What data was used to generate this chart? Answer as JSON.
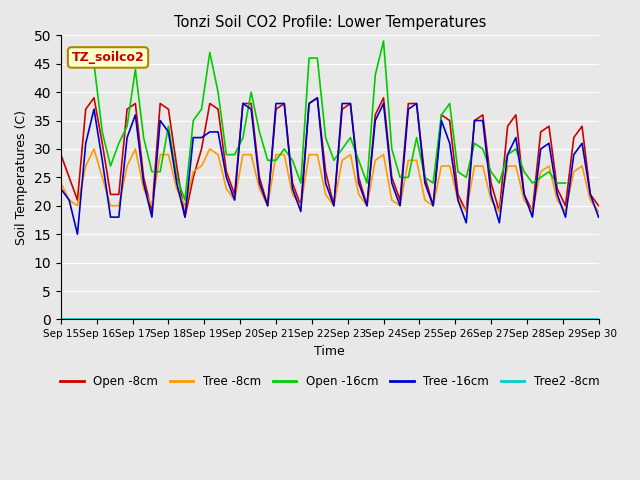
{
  "title": "Tonzi Soil CO2 Profile: Lower Temperatures",
  "xlabel": "Time",
  "ylabel": "Soil Temperatures (C)",
  "ylim": [
    0,
    50
  ],
  "yticks": [
    0,
    5,
    10,
    15,
    20,
    25,
    30,
    35,
    40,
    45,
    50
  ],
  "x_labels": [
    "Sep 15",
    "Sep 16",
    "Sep 17",
    "Sep 18",
    "Sep 19",
    "Sep 20",
    "Sep 21",
    "Sep 22",
    "Sep 23",
    "Sep 24",
    "Sep 25",
    "Sep 26",
    "Sep 27",
    "Sep 28",
    "Sep 29",
    "Sep 30"
  ],
  "bg_color": "#e8e8e8",
  "watermark": "TZ_soilco2",
  "open8_color": "#cc0000",
  "tree8_color": "#ff9900",
  "open16_color": "#00cc00",
  "tree16_color": "#0000cc",
  "tree2_8_color": "#00cccc",
  "open8_label": "Open -8cm",
  "tree8_label": "Tree -8cm",
  "open16_label": "Open -16cm",
  "tree16_label": "Tree -16cm",
  "tree2_8_label": "Tree2 -8cm",
  "open8": [
    29,
    25,
    21,
    37,
    39,
    31,
    22,
    22,
    37,
    38,
    25,
    19,
    38,
    37,
    27,
    18,
    25,
    30,
    38,
    37,
    26,
    22,
    38,
    38,
    25,
    20,
    37,
    38,
    24,
    20,
    38,
    39,
    26,
    20,
    37,
    38,
    25,
    20,
    36,
    39,
    25,
    21,
    38,
    38,
    25,
    20,
    36,
    35,
    22,
    19,
    35,
    36,
    24,
    19,
    34,
    36,
    22,
    19,
    33,
    34,
    23,
    20,
    32,
    34,
    22,
    20
  ],
  "tree8": [
    24,
    21,
    20,
    27,
    30,
    25,
    20,
    20,
    27,
    30,
    23,
    20,
    29,
    29,
    23,
    20,
    26,
    27,
    30,
    29,
    23,
    21,
    29,
    29,
    23,
    20,
    29,
    29,
    22,
    20,
    29,
    29,
    22,
    20,
    28,
    29,
    22,
    20,
    28,
    29,
    21,
    20,
    28,
    28,
    21,
    20,
    27,
    27,
    21,
    19,
    27,
    27,
    21,
    19,
    27,
    27,
    21,
    19,
    26,
    27,
    21,
    19,
    26,
    27,
    21,
    19
  ],
  "open16": [
    null,
    null,
    null,
    46,
    45,
    33,
    27,
    31,
    34,
    44,
    32,
    26,
    26,
    34,
    25,
    21,
    35,
    37,
    47,
    40,
    29,
    29,
    32,
    40,
    33,
    28,
    28,
    30,
    28,
    24,
    46,
    46,
    32,
    28,
    30,
    32,
    28,
    24,
    43,
    49,
    30,
    25,
    25,
    32,
    25,
    24,
    36,
    38,
    26,
    25,
    31,
    30,
    26,
    24,
    29,
    30,
    26,
    24,
    25,
    26,
    24,
    24,
    null,
    null,
    null,
    null
  ],
  "tree16": [
    23,
    21,
    15,
    31,
    37,
    28,
    18,
    18,
    32,
    36,
    24,
    18,
    35,
    33,
    24,
    18,
    32,
    32,
    33,
    33,
    25,
    21,
    38,
    37,
    24,
    20,
    38,
    38,
    23,
    19,
    38,
    39,
    24,
    20,
    38,
    38,
    24,
    20,
    35,
    38,
    24,
    20,
    37,
    38,
    24,
    20,
    35,
    31,
    21,
    17,
    35,
    35,
    22,
    17,
    29,
    32,
    22,
    18,
    30,
    31,
    22,
    18,
    29,
    31,
    22,
    18
  ],
  "tree2_8": [
    0,
    0,
    0,
    0,
    0,
    0,
    0,
    0,
    0,
    0,
    0,
    0,
    0,
    0,
    0,
    0,
    0,
    0,
    0,
    0,
    0,
    0,
    0,
    0,
    0,
    0,
    0,
    0,
    0,
    0,
    0,
    0,
    0,
    0,
    0,
    0,
    0,
    0,
    0,
    0,
    0,
    0,
    0,
    0,
    0,
    0,
    0,
    0,
    0,
    0,
    0,
    0,
    0,
    0,
    0,
    0,
    0,
    0,
    0,
    0,
    0,
    0,
    0,
    0,
    0,
    0
  ],
  "n_days": 15,
  "pts_per_day": 4
}
